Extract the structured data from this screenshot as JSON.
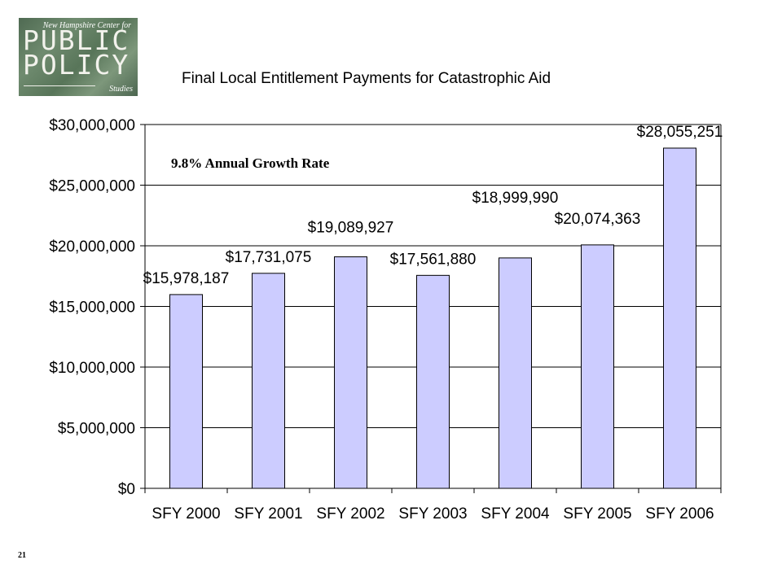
{
  "logo": {
    "top_text": "New Hampshire Center for",
    "line1": "PUBLIC",
    "line2": "POLICY",
    "bottom_text": "Studies"
  },
  "page_number": "21",
  "annotation": "9.8% Annual Growth Rate",
  "colors": {
    "bar_fill": "#ccccff",
    "bar_stroke": "#000000",
    "grid": "#000000"
  },
  "chart_data": {
    "type": "bar",
    "title": "Final Local Entitlement Payments for Catastrophic Aid",
    "xlabel": "",
    "ylabel": "",
    "categories": [
      "SFY 2000",
      "SFY 2001",
      "SFY 2002",
      "SFY 2003",
      "SFY 2004",
      "SFY 2005",
      "SFY 2006"
    ],
    "values": [
      15978187,
      17731075,
      19089927,
      17561880,
      18999990,
      20074363,
      28055251
    ],
    "data_labels": [
      "$15,978,187",
      "$17,731,075",
      "$19,089,927",
      "$17,561,880",
      "$18,999,990",
      "$20,074,363",
      "$28,055,251"
    ],
    "ylim": [
      0,
      30000000
    ],
    "yticks": [
      0,
      5000000,
      10000000,
      15000000,
      20000000,
      25000000,
      30000000
    ],
    "ytick_labels": [
      "$0",
      "$5,000,000",
      "$10,000,000",
      "$15,000,000",
      "$20,000,000",
      "$25,000,000",
      "$30,000,000"
    ],
    "grid": true,
    "legend": "none"
  }
}
